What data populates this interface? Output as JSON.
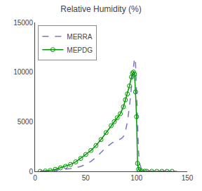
{
  "chart_data": {
    "type": "line",
    "title": "Relative Humidity (%)",
    "series": [
      {
        "name": "MERRA",
        "color": "#7777cc",
        "line_style": "dashed",
        "marker": "none",
        "x": [
          5,
          10,
          15,
          20,
          25,
          30,
          35,
          40,
          45,
          50,
          55,
          60,
          65,
          70,
          75,
          80,
          83,
          85,
          87,
          89,
          91,
          93,
          95,
          97,
          98,
          99,
          100,
          101,
          102,
          103,
          105,
          107,
          110,
          115,
          120,
          130,
          140
        ],
        "values": [
          0,
          20,
          50,
          100,
          150,
          200,
          280,
          380,
          500,
          700,
          1000,
          1400,
          1900,
          2400,
          2800,
          3100,
          3200,
          3300,
          3500,
          4000,
          5000,
          6500,
          8500,
          10800,
          11400,
          11000,
          8000,
          4500,
          2000,
          800,
          200,
          60,
          20,
          5,
          2,
          1,
          0
        ]
      },
      {
        "name": "MEPDG",
        "color": "#009900",
        "line_style": "solid",
        "marker": "open_circle",
        "x": [
          5,
          10,
          15,
          20,
          25,
          30,
          35,
          40,
          45,
          50,
          55,
          60,
          65,
          70,
          75,
          78,
          81,
          84,
          87,
          89,
          91,
          93,
          95,
          96,
          97,
          98,
          99,
          100,
          101,
          102,
          103,
          105,
          108,
          110,
          115,
          120,
          125,
          130,
          135
        ],
        "values": [
          0,
          30,
          80,
          200,
          350,
          500,
          700,
          950,
          1300,
          1700,
          2100,
          2600,
          3200,
          3900,
          4600,
          5000,
          5400,
          5800,
          6500,
          7200,
          7800,
          8600,
          9500,
          9900,
          10000,
          9800,
          8000,
          5500,
          800,
          200,
          80,
          30,
          10,
          5,
          3,
          2,
          1,
          1,
          0
        ]
      }
    ],
    "xlim": [
      0,
      150
    ],
    "xticks": [
      0,
      50,
      100,
      150
    ],
    "ylim": [
      0,
      15000
    ],
    "yticks": [
      0,
      5000,
      10000,
      15000
    ],
    "grid": false,
    "legend": "upper left"
  }
}
